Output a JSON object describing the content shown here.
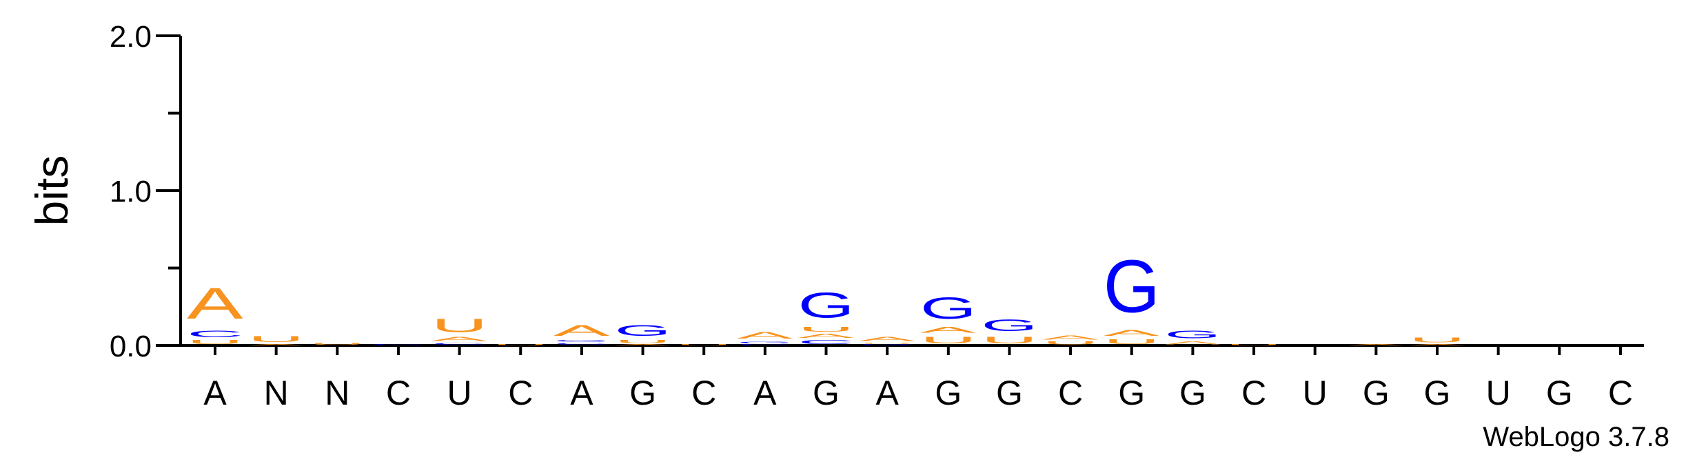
{
  "chart_data": {
    "type": "sequence-logo",
    "ylabel": "bits",
    "ylim": [
      0,
      2.0
    ],
    "yticks": [
      "0.0",
      "1.0",
      "2.0"
    ],
    "credit": "WebLogo 3.7.8",
    "colors": {
      "A": "#F7931E",
      "U": "#F7931E",
      "G": "#0000FF",
      "C": "#0000FF"
    },
    "positions": [
      {
        "label": "A",
        "stack": [
          {
            "base": "U",
            "bits": 0.04
          },
          {
            "base": "C",
            "bits": 0.07
          },
          {
            "base": "A",
            "bits": 0.32
          }
        ]
      },
      {
        "label": "N",
        "stack": [
          {
            "base": "A",
            "bits": 0.01
          },
          {
            "base": "U",
            "bits": 0.06
          }
        ]
      },
      {
        "label": "N",
        "stack": [
          {
            "base": "U",
            "bits": 0.02
          }
        ]
      },
      {
        "label": "C",
        "stack": [
          {
            "base": "C",
            "bits": 0.01
          }
        ]
      },
      {
        "label": "U",
        "stack": [
          {
            "base": "C",
            "bits": 0.02
          },
          {
            "base": "A",
            "bits": 0.04
          },
          {
            "base": "U",
            "bits": 0.14
          }
        ]
      },
      {
        "label": "C",
        "stack": [
          {
            "base": "U",
            "bits": 0.01
          }
        ]
      },
      {
        "label": "A",
        "stack": [
          {
            "base": "C",
            "bits": 0.02
          },
          {
            "base": "G",
            "bits": 0.02
          },
          {
            "base": "A",
            "bits": 0.11
          }
        ]
      },
      {
        "label": "G",
        "stack": [
          {
            "base": "A",
            "bits": 0.01
          },
          {
            "base": "U",
            "bits": 0.03
          },
          {
            "base": "G",
            "bits": 0.11
          }
        ]
      },
      {
        "label": "C",
        "stack": [
          {
            "base": "U",
            "bits": 0.01
          }
        ]
      },
      {
        "label": "A",
        "stack": [
          {
            "base": "C",
            "bits": 0.01
          },
          {
            "base": "G",
            "bits": 0.02
          },
          {
            "base": "A",
            "bits": 0.07
          }
        ]
      },
      {
        "label": "G",
        "stack": [
          {
            "base": "C",
            "bits": 0.04
          },
          {
            "base": "A",
            "bits": 0.04
          },
          {
            "base": "U",
            "bits": 0.05
          },
          {
            "base": "G",
            "bits": 0.26
          }
        ]
      },
      {
        "label": "A",
        "stack": [
          {
            "base": "G",
            "bits": 0.01
          },
          {
            "base": "U",
            "bits": 0.01
          },
          {
            "base": "A",
            "bits": 0.04
          }
        ]
      },
      {
        "label": "G",
        "stack": [
          {
            "base": "U",
            "bits": 0.07
          },
          {
            "base": "A",
            "bits": 0.06
          },
          {
            "base": "G",
            "bits": 0.22
          }
        ]
      },
      {
        "label": "G",
        "stack": [
          {
            "base": "U",
            "bits": 0.07
          },
          {
            "base": "G",
            "bits": 0.12
          }
        ]
      },
      {
        "label": "C",
        "stack": [
          {
            "base": "U",
            "bits": 0.03
          },
          {
            "base": "A",
            "bits": 0.04
          }
        ]
      },
      {
        "label": "G",
        "stack": [
          {
            "base": "U",
            "bits": 0.05
          },
          {
            "base": "A",
            "bits": 0.06
          },
          {
            "base": "G",
            "bits": 0.54
          }
        ]
      },
      {
        "label": "G",
        "stack": [
          {
            "base": "A",
            "bits": 0.03
          },
          {
            "base": "G",
            "bits": 0.08
          }
        ]
      },
      {
        "label": "C",
        "stack": [
          {
            "base": "U",
            "bits": 0.01
          }
        ]
      },
      {
        "label": "U",
        "stack": []
      },
      {
        "label": "G",
        "stack": [
          {
            "base": "A",
            "bits": 0.01
          }
        ]
      },
      {
        "label": "G",
        "stack": [
          {
            "base": "A",
            "bits": 0.01
          },
          {
            "base": "U",
            "bits": 0.05
          }
        ]
      },
      {
        "label": "U",
        "stack": []
      },
      {
        "label": "G",
        "stack": []
      },
      {
        "label": "C",
        "stack": []
      }
    ]
  }
}
